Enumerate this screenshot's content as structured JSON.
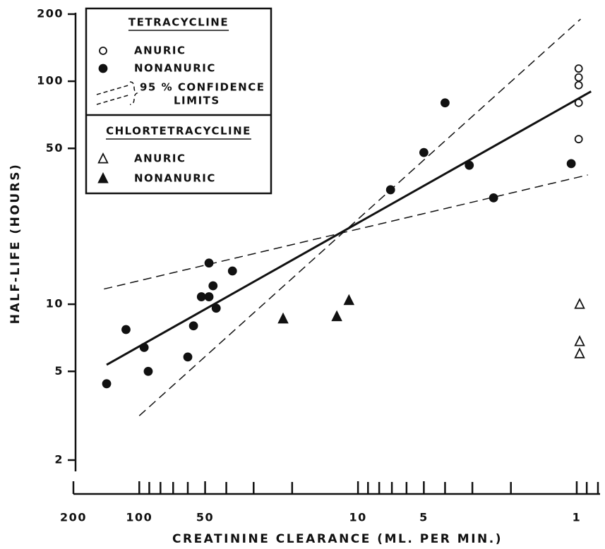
{
  "chart_data": {
    "type": "scatter",
    "x_label": "CREATININE CLEARANCE (ML. PER MIN.)",
    "y_label": "HALF-LIFE (HOURS)",
    "xscale": "log",
    "yscale": "log",
    "x_reversed": true,
    "xlim": [
      200,
      0.8
    ],
    "ylim": [
      2,
      200
    ],
    "xticks": [
      200,
      100,
      50,
      10,
      5,
      1
    ],
    "xminorticks": [
      90,
      80,
      70,
      60,
      40,
      30,
      20,
      9,
      8,
      7,
      6,
      4,
      3,
      2,
      0.9,
      0.8
    ],
    "yticks": [
      2,
      5,
      10,
      50,
      100,
      200
    ],
    "groups": [
      "TETRACYCLINE",
      "CHLORTETRACYCLINE"
    ],
    "confidence_label": [
      "95 % CONFIDENCE",
      "LIMITS"
    ],
    "series": [
      {
        "name": "ANURIC",
        "group": 0,
        "marker": "circle",
        "filled": false,
        "color": "#111111",
        "x": [
          0.98,
          0.98,
          0.98,
          0.98,
          0.98
        ],
        "values": [
          114,
          104,
          96,
          80,
          55
        ]
      },
      {
        "name": "NONANURIC",
        "group": 0,
        "marker": "circle",
        "filled": true,
        "color": "#111111",
        "x": [
          141,
          115,
          95,
          91,
          60,
          56.5,
          52,
          48,
          48,
          46,
          44.5,
          37.5,
          7.1,
          5.0,
          4.0,
          3.1,
          2.4,
          1.06
        ],
        "values": [
          4.4,
          7.7,
          6.4,
          5.0,
          5.8,
          8.0,
          10.8,
          15.3,
          10.8,
          12.1,
          9.6,
          14.1,
          32.6,
          47.9,
          80,
          42,
          30,
          42.7
        ]
      },
      {
        "name": "ANURIC",
        "group": 1,
        "marker": "triangle",
        "filled": false,
        "color": "#111111",
        "x": [
          0.97,
          0.97,
          0.97
        ],
        "values": [
          10,
          6.8,
          6.0
        ]
      },
      {
        "name": "NONANURIC",
        "group": 1,
        "marker": "triangle",
        "filled": true,
        "color": "#111111",
        "x": [
          22,
          12.5,
          11
        ],
        "values": [
          8.6,
          8.8,
          10.4
        ]
      }
    ],
    "lines": [
      {
        "style": "solid",
        "x": [
          141,
          0.86
        ],
        "values": [
          5.35,
          90
        ]
      },
      {
        "style": "dashed",
        "x": [
          100,
          0.96
        ],
        "values": [
          3.16,
          190
        ]
      },
      {
        "style": "dashed",
        "x": [
          145,
          0.89
        ],
        "values": [
          11.7,
          38
        ]
      }
    ]
  }
}
